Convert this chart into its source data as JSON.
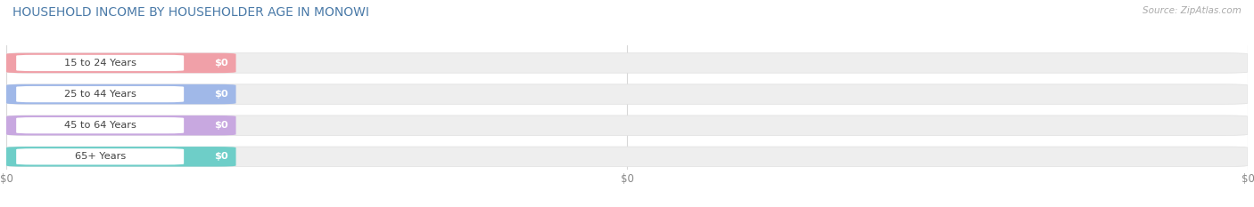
{
  "title": "HOUSEHOLD INCOME BY HOUSEHOLDER AGE IN MONOWI",
  "source": "Source: ZipAtlas.com",
  "categories": [
    "15 to 24 Years",
    "25 to 44 Years",
    "45 to 64 Years",
    "65+ Years"
  ],
  "values": [
    0,
    0,
    0,
    0
  ],
  "bar_colors": [
    "#f0a0a8",
    "#a0b8e8",
    "#c8a8e0",
    "#6ecec8"
  ],
  "background_color": "#ffffff",
  "bar_bg_color": "#eeeeee",
  "bar_bg_border_color": "#e0e0e0",
  "title_color": "#4a7aa8",
  "tick_label_color": "#888888",
  "source_color": "#aaaaaa",
  "figsize": [
    14.06,
    2.33
  ],
  "dpi": 100
}
